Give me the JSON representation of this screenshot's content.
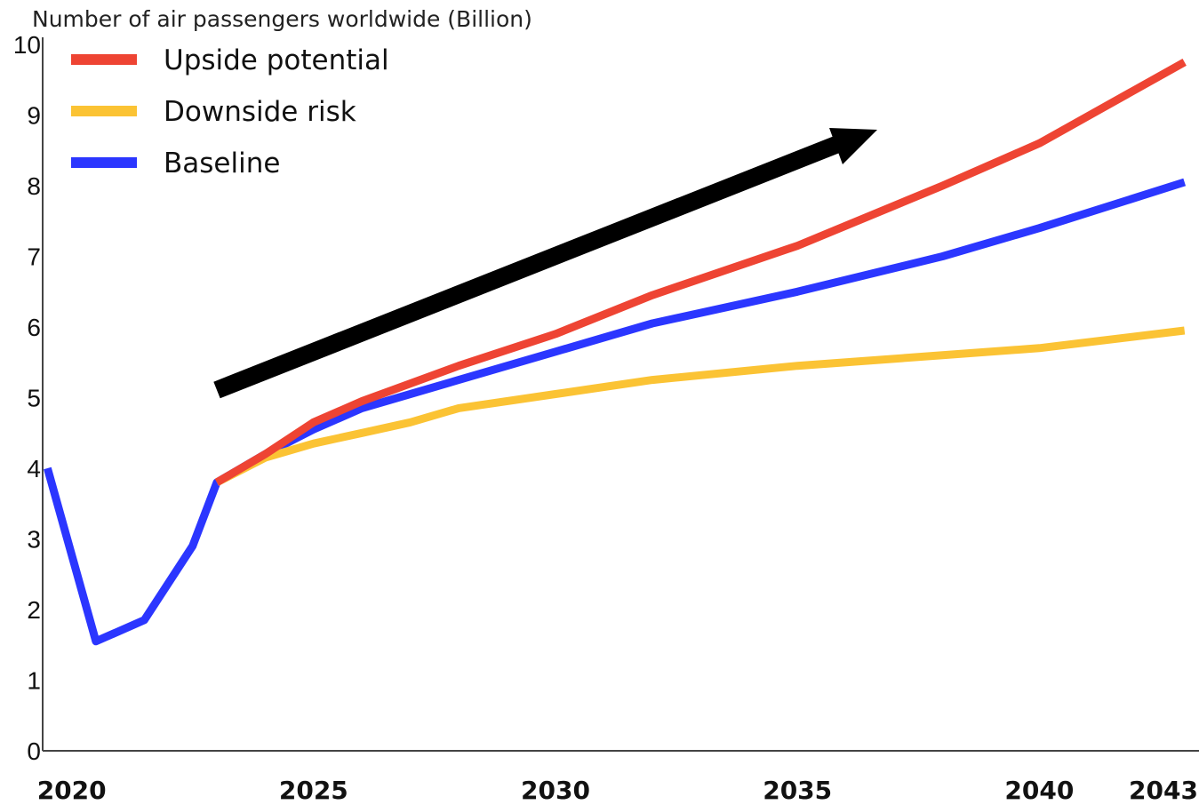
{
  "chart_data": {
    "type": "line",
    "ylabel": "Number of air passengers worldwide (Billion)",
    "xlabel": "",
    "xlim": [
      2019.4,
      2043.3
    ],
    "ylim": [
      0,
      10
    ],
    "x_ticks": [
      "2020",
      "2025",
      "2030",
      "2035",
      "2040",
      "2043"
    ],
    "y_ticks": [
      "0",
      "1",
      "2",
      "3",
      "4",
      "5",
      "6",
      "7",
      "8",
      "9",
      "10"
    ],
    "legend_position": "top-left",
    "series": [
      {
        "name": "Upside potential",
        "color": "#ee4433",
        "points": [
          [
            2023,
            3.8
          ],
          [
            2024,
            4.2
          ],
          [
            2025,
            4.65
          ],
          [
            2026,
            4.95
          ],
          [
            2027,
            5.2
          ],
          [
            2028,
            5.45
          ],
          [
            2030,
            5.9
          ],
          [
            2032,
            6.45
          ],
          [
            2035,
            7.15
          ],
          [
            2038,
            8.0
          ],
          [
            2040,
            8.6
          ],
          [
            2043,
            9.75
          ]
        ]
      },
      {
        "name": "Downside risk",
        "color": "#fbc334",
        "points": [
          [
            2023,
            3.8
          ],
          [
            2024,
            4.15
          ],
          [
            2025,
            4.35
          ],
          [
            2026,
            4.5
          ],
          [
            2027,
            4.65
          ],
          [
            2028,
            4.85
          ],
          [
            2030,
            5.05
          ],
          [
            2032,
            5.25
          ],
          [
            2035,
            5.45
          ],
          [
            2038,
            5.6
          ],
          [
            2040,
            5.7
          ],
          [
            2043,
            5.95
          ]
        ]
      },
      {
        "name": "Baseline",
        "color": "#2b36ff",
        "points": [
          [
            2019.5,
            4.0
          ],
          [
            2020.5,
            1.55
          ],
          [
            2021.5,
            1.85
          ],
          [
            2022.5,
            2.9
          ],
          [
            2023,
            3.8
          ],
          [
            2024,
            4.2
          ],
          [
            2025,
            4.55
          ],
          [
            2026,
            4.85
          ],
          [
            2027,
            5.05
          ],
          [
            2028,
            5.25
          ],
          [
            2030,
            5.65
          ],
          [
            2032,
            6.05
          ],
          [
            2035,
            6.5
          ],
          [
            2038,
            7.0
          ],
          [
            2040,
            7.4
          ],
          [
            2043,
            8.05
          ]
        ]
      }
    ]
  }
}
